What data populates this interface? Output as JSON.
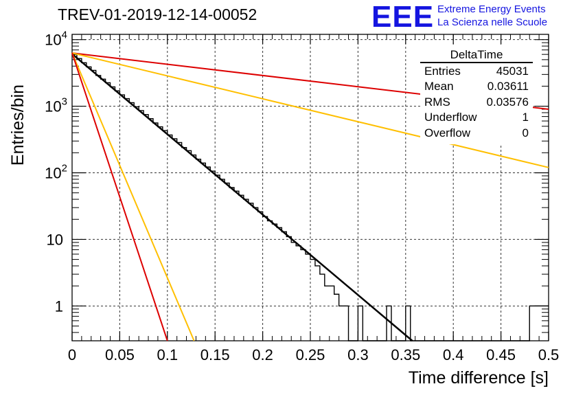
{
  "title": "TREV-01-2019-12-14-00052",
  "logo": {
    "mark": "EEE",
    "line1": "Extreme Energy Events",
    "line2": "La Scienza nelle Scuole",
    "color": "#1515e0"
  },
  "stats_box": {
    "title": "DeltaTime",
    "rows": [
      {
        "label": "Entries",
        "value": "45031"
      },
      {
        "label": "Mean",
        "value": "0.03611"
      },
      {
        "label": "RMS",
        "value": "0.03576"
      },
      {
        "label": "Underflow",
        "value": "1"
      },
      {
        "label": "Overflow",
        "value": "0"
      }
    ]
  },
  "chart_data": {
    "type": "line",
    "xlabel": "Time difference [s]",
    "ylabel": "Entries/bin",
    "xlim": [
      0,
      0.5
    ],
    "ylim": [
      0.3,
      12000
    ],
    "yscale": "log",
    "grid": true,
    "x_ticks": [
      "0",
      "0.05",
      "0.1",
      "0.15",
      "0.2",
      "0.25",
      "0.3",
      "0.35",
      "0.4",
      "0.45",
      "0.5"
    ],
    "y_ticks": [
      {
        "value": 1,
        "base": "1",
        "exp": ""
      },
      {
        "value": 10,
        "base": "10",
        "exp": ""
      },
      {
        "value": 100,
        "base": "10",
        "exp": "2"
      },
      {
        "value": 1000,
        "base": "10",
        "exp": "3"
      },
      {
        "value": 10000,
        "base": "10",
        "exp": "4"
      }
    ],
    "histogram": {
      "color": "#000000",
      "bin_width": 0.005,
      "bin_edges": [
        0,
        0.005,
        0.01,
        0.015,
        0.02,
        0.025,
        0.03,
        0.035,
        0.04,
        0.045,
        0.05,
        0.055,
        0.06,
        0.065,
        0.07,
        0.075,
        0.08,
        0.085,
        0.09,
        0.095,
        0.1,
        0.105,
        0.11,
        0.115,
        0.12,
        0.125,
        0.13,
        0.135,
        0.14,
        0.145,
        0.15,
        0.155,
        0.16,
        0.165,
        0.17,
        0.175,
        0.18,
        0.185,
        0.19,
        0.195,
        0.2,
        0.205,
        0.21,
        0.215,
        0.22,
        0.225,
        0.23,
        0.235,
        0.24,
        0.245,
        0.25,
        0.255,
        0.26,
        0.265,
        0.27,
        0.275,
        0.28,
        0.285,
        0.29,
        0.295,
        0.3,
        0.305,
        0.31,
        0.315,
        0.32,
        0.325,
        0.33,
        0.335,
        0.34,
        0.345,
        0.35,
        0.355,
        0.36,
        0.365,
        0.37,
        0.375,
        0.38,
        0.385,
        0.39,
        0.395,
        0.4,
        0.405,
        0.41,
        0.415,
        0.42,
        0.425,
        0.43,
        0.435,
        0.44,
        0.445,
        0.45,
        0.455,
        0.46,
        0.465,
        0.47,
        0.475,
        0.48,
        0.485,
        0.49,
        0.495,
        0.5
      ],
      "counts": [
        6000,
        5200,
        4500,
        3900,
        3450,
        2900,
        2550,
        2250,
        1950,
        1700,
        1480,
        1300,
        1130,
        980,
        860,
        750,
        650,
        560,
        490,
        430,
        370,
        325,
        285,
        240,
        215,
        185,
        160,
        140,
        122,
        106,
        92,
        80,
        70,
        60,
        53,
        46,
        40,
        35,
        30,
        26,
        22,
        19,
        17,
        15,
        13,
        11,
        9,
        8,
        7,
        6,
        5,
        4,
        3,
        2,
        2,
        1.5,
        1,
        1,
        0.3,
        0.3,
        1,
        0.3,
        0.3,
        0.3,
        0.3,
        0.3,
        1,
        0.3,
        0.3,
        0.3,
        1,
        0.3,
        0.3,
        0.3,
        0.3,
        0.3,
        0.3,
        0.3,
        0.3,
        0.3,
        0.3,
        0.3,
        0.3,
        0.3,
        0.3,
        0.3,
        0.3,
        0.3,
        0.3,
        0.3,
        0.3,
        0.3,
        0.3,
        0.3,
        0.3,
        0.3,
        1,
        1,
        1,
        1
      ]
    },
    "series": [
      {
        "color": "#000000",
        "x": [
          0,
          0.357
        ],
        "y": [
          6100,
          0.3
        ]
      },
      {
        "color": "#dd0000",
        "x": [
          0,
          0.5
        ],
        "y": [
          6300,
          900
        ]
      },
      {
        "color": "#ffbf00",
        "x": [
          0,
          0.5
        ],
        "y": [
          6300,
          120
        ]
      },
      {
        "color": "#ffbf00",
        "x": [
          0,
          0.128
        ],
        "y": [
          6300,
          0.3
        ]
      },
      {
        "color": "#dd0000",
        "x": [
          0,
          0.1
        ],
        "y": [
          6300,
          0.3
        ]
      }
    ]
  }
}
